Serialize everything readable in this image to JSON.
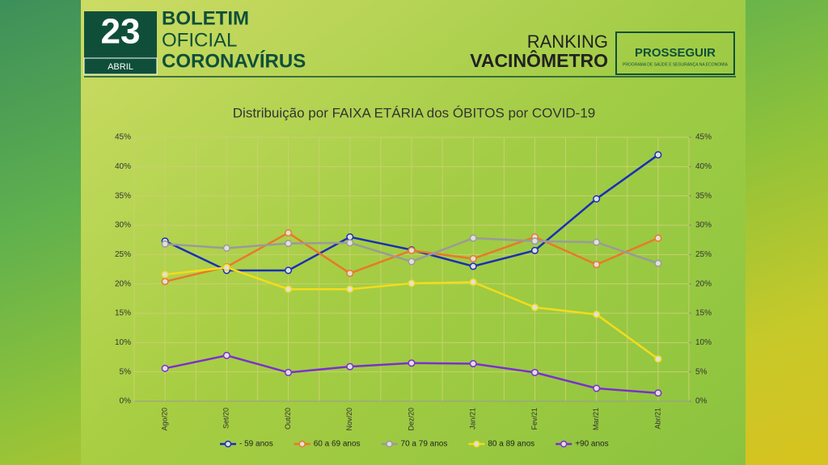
{
  "header": {
    "day": "23",
    "month": "ABRIL",
    "line1": "BOLETIM",
    "line2": "OFICIAL",
    "line3": "CORONAVÍRUS",
    "ranking": "RANKING",
    "vacinometro": "VACINÔMETRO",
    "brand": "PROSSEGUIR",
    "brand_sub": "PROGRAMA DE SAÚDE E SEGURANÇA NA ECONOMIA"
  },
  "chart_data": {
    "type": "line",
    "title": "Distribuição por FAIXA ETÁRIA dos ÓBITOS por COVID-19",
    "categories": [
      "Ago/20",
      "Set/20",
      "Out/20",
      "Nov/20",
      "Dez/20",
      "Jan/21",
      "Fev/21",
      "Mar/21",
      "Abr/21"
    ],
    "series": [
      {
        "name": "- 59 anos",
        "color": "#1a2fb8",
        "values": [
          27.3,
          22.3,
          22.3,
          28.0,
          25.8,
          23.0,
          25.7,
          34.5,
          42.0
        ]
      },
      {
        "name": "60 a 69 anos",
        "color": "#e8792a",
        "values": [
          20.4,
          22.9,
          28.7,
          21.8,
          25.7,
          24.3,
          28.0,
          23.3,
          27.8
        ]
      },
      {
        "name": "70 a 79 anos",
        "color": "#9a9a9a",
        "values": [
          26.8,
          26.1,
          26.9,
          27.0,
          23.8,
          27.8,
          27.3,
          27.1,
          23.5
        ]
      },
      {
        "name": "80 a 89 anos",
        "color": "#f2dc1c",
        "values": [
          21.6,
          22.8,
          19.1,
          19.1,
          20.1,
          20.3,
          16.0,
          14.8,
          7.2
        ]
      },
      {
        "name": "+90 anos",
        "color": "#7b2fd0",
        "values": [
          5.6,
          7.8,
          4.9,
          5.9,
          6.5,
          6.4,
          4.9,
          2.2,
          1.4
        ]
      }
    ],
    "ylim": [
      0,
      45
    ],
    "yticks": [
      {
        "value": 0,
        "label": "0%"
      },
      {
        "value": 5,
        "label": "5%"
      },
      {
        "value": 10,
        "label": "10%"
      },
      {
        "value": 15,
        "label": "15%"
      },
      {
        "value": 20,
        "label": "20%"
      },
      {
        "value": 25,
        "label": "25%"
      },
      {
        "value": 30,
        "label": "30%"
      },
      {
        "value": 35,
        "label": "35%"
      },
      {
        "value": 40,
        "label": "40%"
      },
      {
        "value": 45,
        "label": "45%"
      }
    ],
    "y2lim": [
      0,
      45
    ],
    "y2ticks": [
      {
        "value": 0,
        "label": "0%"
      },
      {
        "value": 5,
        "label": "5%"
      },
      {
        "value": 10,
        "label": "10%"
      },
      {
        "value": 15,
        "label": "15%"
      },
      {
        "value": 20,
        "label": "20%"
      },
      {
        "value": 25,
        "label": "25%"
      },
      {
        "value": 30,
        "label": "30%"
      },
      {
        "value": 35,
        "label": "35%"
      },
      {
        "value": 40,
        "label": "40%"
      },
      {
        "value": 45,
        "label": "45%"
      }
    ],
    "grid": true,
    "legend": "bottom"
  }
}
